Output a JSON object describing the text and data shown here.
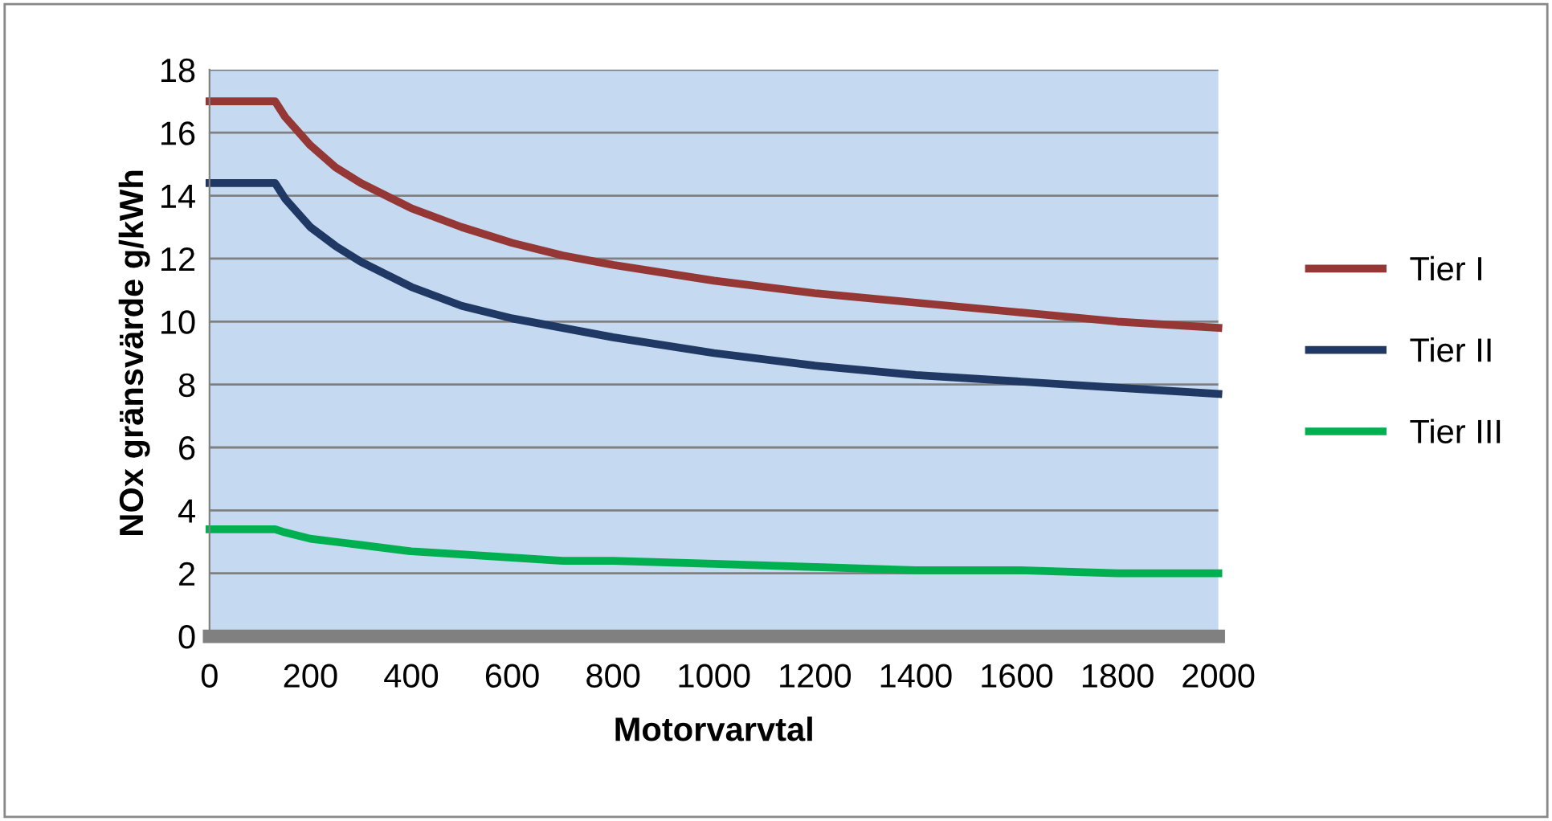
{
  "chart_data": {
    "type": "line",
    "xlabel": "Motorvarvtal",
    "ylabel": "NOx gränsvärde g/kWh",
    "x": [
      0,
      130,
      150,
      200,
      250,
      300,
      400,
      500,
      600,
      700,
      800,
      1000,
      1200,
      1400,
      1600,
      1800,
      2000
    ],
    "series": [
      {
        "name": "Tier I",
        "color": "#953735",
        "values": [
          17.0,
          17.0,
          16.5,
          15.6,
          14.9,
          14.4,
          13.6,
          13.0,
          12.5,
          12.1,
          11.8,
          11.3,
          10.9,
          10.6,
          10.3,
          10.0,
          9.8
        ]
      },
      {
        "name": "Tier II",
        "color": "#1f3864",
        "values": [
          14.4,
          14.4,
          13.9,
          13.0,
          12.4,
          11.9,
          11.1,
          10.5,
          10.1,
          9.8,
          9.5,
          9.0,
          8.6,
          8.3,
          8.1,
          7.9,
          7.7
        ]
      },
      {
        "name": "Tier III",
        "color": "#00b050",
        "values": [
          3.4,
          3.4,
          3.3,
          3.1,
          3.0,
          2.9,
          2.7,
          2.6,
          2.5,
          2.4,
          2.4,
          2.3,
          2.2,
          2.1,
          2.1,
          2.0,
          2.0
        ]
      }
    ],
    "xlim": [
      0,
      2000
    ],
    "xticks": [
      0,
      200,
      400,
      600,
      800,
      1000,
      1200,
      1400,
      1600,
      1800,
      2000
    ],
    "ylim": [
      0,
      18
    ],
    "yticks": [
      0,
      2,
      4,
      6,
      8,
      10,
      12,
      14,
      16,
      18
    ],
    "grid": "y",
    "legend": "right",
    "marker": "none",
    "line_style": "solid"
  }
}
